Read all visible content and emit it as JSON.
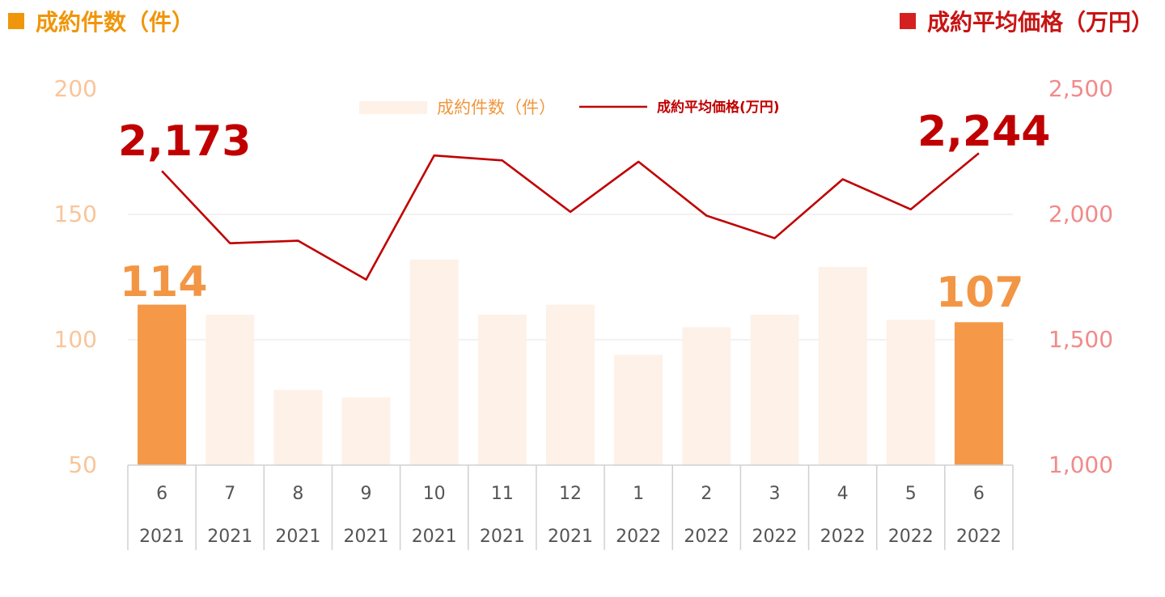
{
  "header": {
    "left_title": "成約件数（件）",
    "right_title": "成約平均価格（万円）"
  },
  "colors": {
    "left_accent": "#f0960a",
    "right_accent": "#c81414",
    "bar_highlight": "#f59847",
    "bar_normal": "#fdf1e8",
    "line": "#c00000"
  },
  "chart_data": {
    "type": "bar",
    "categories": [
      [
        "6",
        "2021"
      ],
      [
        "7",
        "2021"
      ],
      [
        "8",
        "2021"
      ],
      [
        "9",
        "2021"
      ],
      [
        "10",
        "2021"
      ],
      [
        "11",
        "2021"
      ],
      [
        "12",
        "2021"
      ],
      [
        "1",
        "2022"
      ],
      [
        "2",
        "2022"
      ],
      [
        "3",
        "2022"
      ],
      [
        "4",
        "2022"
      ],
      [
        "5",
        "2022"
      ],
      [
        "6",
        "2022"
      ]
    ],
    "series": [
      {
        "name": "成約件数（件）",
        "type": "bar",
        "axis": "left",
        "values": [
          114,
          110,
          80,
          77,
          132,
          110,
          114,
          94,
          105,
          110,
          129,
          108,
          107
        ],
        "highlight": [
          0,
          12
        ]
      },
      {
        "name": "成約平均価格(万円)",
        "type": "line",
        "axis": "right",
        "values": [
          2173,
          1885,
          1895,
          1740,
          2235,
          2215,
          2010,
          2210,
          1995,
          1905,
          2140,
          2020,
          2244
        ]
      }
    ],
    "y_left": {
      "range": [
        50,
        200
      ],
      "ticks": [
        "200",
        "150",
        "100",
        "50"
      ]
    },
    "y_right": {
      "range": [
        1000,
        2500
      ],
      "ticks": [
        "2,500",
        "2,000",
        "1,500",
        "1,000"
      ]
    },
    "grid": true,
    "legend": "top-center",
    "data_labels": {
      "price_first": "2,173",
      "price_last": "2,244",
      "count_first": "114",
      "count_last": "107"
    }
  }
}
